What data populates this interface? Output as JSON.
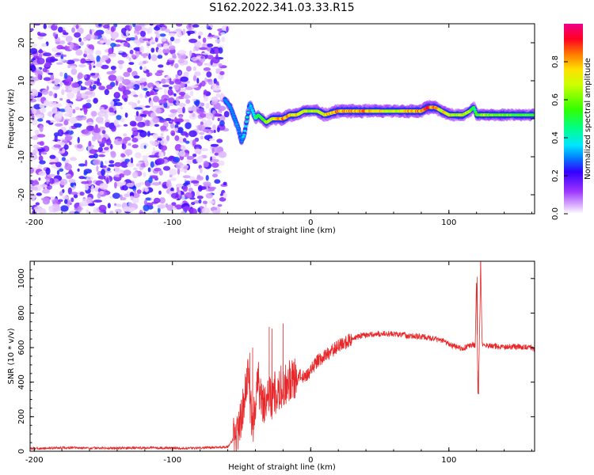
{
  "title": "S162.2022.341.03.33.R15",
  "chart_data": [
    {
      "type": "heatmap",
      "name": "spectrogram",
      "xlabel": "Height of straight line (km)",
      "ylabel": "Frequency (Hz)",
      "xlim": [
        -203,
        162
      ],
      "ylim": [
        -25,
        25
      ],
      "xticks": [
        -200,
        -100,
        0,
        100
      ],
      "yticks": [
        -20,
        -10,
        0,
        10,
        20
      ],
      "noise_region_x": [
        -203,
        -62
      ],
      "signal_ridge": {
        "x": [
          -62,
          -58,
          -55,
          -52,
          -50,
          -48,
          -46,
          -44,
          -42,
          -40,
          -38,
          -35,
          -32,
          -28,
          -24,
          -20,
          -15,
          -10,
          -5,
          0,
          5,
          10,
          20,
          30,
          40,
          50,
          60,
          70,
          80,
          85,
          90,
          95,
          100,
          105,
          110,
          115,
          118,
          120,
          125,
          130,
          140,
          150,
          162
        ],
        "freq_hz": [
          5,
          3,
          0,
          -3,
          -6,
          -4,
          0,
          4,
          2,
          0,
          1,
          0,
          -1,
          0,
          0,
          0,
          1,
          1,
          2,
          2,
          2,
          1,
          2,
          2,
          2,
          2,
          2,
          2,
          2,
          3,
          3,
          2,
          1,
          1,
          1,
          2,
          3,
          1,
          1,
          1,
          1,
          1,
          1
        ],
        "amplitude": [
          0.2,
          0.25,
          0.3,
          0.3,
          0.3,
          0.35,
          0.4,
          0.35,
          0.4,
          0.45,
          0.5,
          0.55,
          0.6,
          0.7,
          0.75,
          0.85,
          0.8,
          0.75,
          0.7,
          0.65,
          0.7,
          0.75,
          0.85,
          0.8,
          0.8,
          0.75,
          0.7,
          0.8,
          0.85,
          0.9,
          0.8,
          0.75,
          0.7,
          0.65,
          0.7,
          0.6,
          0.5,
          0.55,
          0.65,
          0.6,
          0.6,
          0.55,
          0.55
        ]
      },
      "colorbar": {
        "label": "Normalized spectral amplitude",
        "range": [
          0,
          1
        ],
        "ticks": [
          "0.0",
          "0.2",
          "0.4",
          "0.6",
          "0.8"
        ]
      }
    },
    {
      "type": "line",
      "name": "snr",
      "xlabel": "Height of straight line (km)",
      "ylabel": "SNR (10 * v/v)",
      "xlim": [
        -203,
        162
      ],
      "ylim": [
        0,
        1100
      ],
      "xticks": [
        -200,
        -100,
        0,
        100
      ],
      "yticks": [
        0,
        200,
        400,
        600,
        800,
        1000
      ],
      "series": [
        {
          "name": "SNR",
          "color": "#e8282a",
          "x": [
            -203,
            -180,
            -150,
            -120,
            -90,
            -70,
            -60,
            -55,
            -50,
            -46,
            -44,
            -42,
            -40,
            -38,
            -35,
            -32,
            -30,
            -28,
            -25,
            -22,
            -20,
            -18,
            -15,
            -12,
            -10,
            -8,
            -5,
            -2,
            0,
            5,
            10,
            15,
            20,
            25,
            30,
            35,
            40,
            50,
            60,
            70,
            80,
            90,
            95,
            100,
            105,
            110,
            115,
            118,
            119,
            120,
            121,
            122,
            123,
            124,
            125,
            130,
            140,
            150,
            160,
            162
          ],
          "y": [
            15,
            20,
            18,
            20,
            18,
            22,
            25,
            80,
            200,
            450,
            300,
            150,
            250,
            400,
            300,
            280,
            350,
            300,
            350,
            380,
            350,
            380,
            400,
            420,
            400,
            440,
            430,
            450,
            470,
            520,
            550,
            580,
            610,
            630,
            650,
            665,
            675,
            680,
            680,
            670,
            665,
            650,
            640,
            620,
            605,
            595,
            610,
            620,
            600,
            1010,
            340,
            600,
            1100,
            620,
            615,
            610,
            605,
            605,
            600,
            590
          ]
        }
      ],
      "spikes": [
        {
          "x": -44,
          "y": 570
        },
        {
          "x": -42,
          "y": 600
        },
        {
          "x": -30,
          "y": 720
        },
        {
          "x": -28,
          "y": 710
        },
        {
          "x": -20,
          "y": 740
        },
        {
          "x": 120.5,
          "y": 1010
        },
        {
          "x": 121.5,
          "y": 330
        },
        {
          "x": 123,
          "y": 1100
        }
      ]
    }
  ]
}
